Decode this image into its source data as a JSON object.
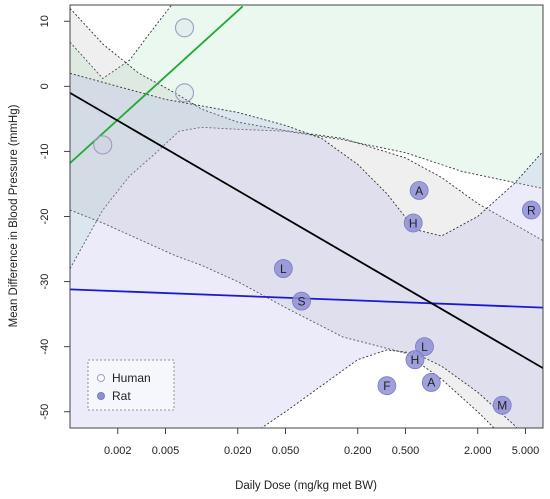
{
  "chart_data": {
    "type": "scatter",
    "xlabel": "Daily Dose (mg/kg met BW)",
    "ylabel": "Mean Difference in Blood Pressure (mmHg)",
    "xscale": "log",
    "xlim": [
      0.0008,
      7.0
    ],
    "ylim": [
      -52.5,
      12.5
    ],
    "x_ticks": [
      0.002,
      0.005,
      0.02,
      0.05,
      0.2,
      0.5,
      2.0,
      5.0
    ],
    "x_tick_labels": [
      "0.002",
      "0.005",
      "0.020",
      "0.050",
      "0.200",
      "0.500",
      "2.000",
      "5.000"
    ],
    "y_ticks": [
      10,
      0,
      -10,
      -20,
      -30,
      -40,
      -50
    ],
    "y_tick_labels": [
      "10",
      "0",
      "-10",
      "-20",
      "-30",
      "-40",
      "-50"
    ],
    "legend": {
      "position": "bottom-left",
      "entries": [
        {
          "label": "Human",
          "marker": "hollow-circle"
        },
        {
          "label": "Rat",
          "marker": "filled-circle"
        }
      ]
    },
    "colors": {
      "human_line": "#22aa33",
      "human_band": "#bfe8cc",
      "rat_line": "#1a1ad4",
      "rat_band": "#b8b8ec",
      "overall_line": "#000000",
      "overall_band": "#b8b8b8",
      "rat_point": "#8f8fd6",
      "human_point": "#c4c8de"
    },
    "series": [
      {
        "name": "Human",
        "marker": "hollow-circle",
        "points": [
          {
            "x": 0.0015,
            "y": -9,
            "label": ""
          },
          {
            "x": 0.0072,
            "y": 9,
            "label": ""
          },
          {
            "x": 0.0072,
            "y": -1,
            "label": ""
          }
        ]
      },
      {
        "name": "Rat",
        "marker": "filled-circle",
        "points": [
          {
            "x": 0.048,
            "y": -28,
            "label": "L"
          },
          {
            "x": 0.068,
            "y": -33,
            "label": "S"
          },
          {
            "x": 0.65,
            "y": -16,
            "label": "A"
          },
          {
            "x": 0.58,
            "y": -21,
            "label": "H"
          },
          {
            "x": 5.6,
            "y": -19,
            "label": "R"
          },
          {
            "x": 0.72,
            "y": -40,
            "label": "L"
          },
          {
            "x": 0.6,
            "y": -42,
            "label": "H"
          },
          {
            "x": 0.35,
            "y": -46,
            "label": "F"
          },
          {
            "x": 0.82,
            "y": -45.5,
            "label": "A"
          },
          {
            "x": 3.2,
            "y": -49,
            "label": "M"
          }
        ]
      }
    ],
    "fit_lines": [
      {
        "group": "Human",
        "x": [
          0.0008,
          0.022
        ],
        "y": [
          -11.8,
          12.3
        ]
      },
      {
        "group": "Rat",
        "x": [
          0.0008,
          7.0
        ],
        "y": [
          -31.2,
          -34.0
        ]
      },
      {
        "group": "Overall",
        "x": [
          0.0008,
          7.0
        ],
        "y": [
          -1.0,
          -43.3
        ]
      }
    ],
    "confidence_bands": [
      {
        "group": "Human",
        "x": [
          0.0008,
          0.0015,
          0.0025,
          0.004,
          0.0065,
          0.01,
          0.02,
          0.05,
          0.15,
          0.5,
          1.5,
          7.0
        ],
        "upper": [
          6.8,
          1.2,
          4.0,
          9.0,
          14.0,
          20.0,
          24.0,
          24.0,
          24.0,
          24.0,
          24.0,
          24.0
        ],
        "lower": [
          -28.0,
          -19.0,
          -13.8,
          -10.5,
          -6.9,
          -6.3,
          -6.6,
          -6.9,
          -8.2,
          -10.2,
          -13.1,
          -15.7
        ]
      },
      {
        "group": "Overall",
        "x": [
          0.0008,
          0.0015,
          0.003,
          0.006,
          0.01,
          0.02,
          0.05,
          0.15,
          0.5,
          1.0,
          2.0,
          7.0
        ],
        "upper": [
          12.0,
          6.5,
          2.0,
          -1.0,
          -3.5,
          -5.5,
          -6.8,
          -8.0,
          -11.0,
          -14.0,
          -18.0,
          -23.7
        ],
        "lower": [
          -19.0,
          -21.0,
          -23.5,
          -26.0,
          -27.5,
          -30.0,
          -34.0,
          -38.5,
          -41.0,
          -45.0,
          -50.0,
          -60.0
        ]
      },
      {
        "group": "Rat",
        "x": [
          0.0008,
          0.005,
          0.02,
          0.05,
          0.1,
          0.2,
          0.35,
          0.6,
          1.0,
          2.0,
          4.0,
          7.0
        ],
        "upper": [
          2.0,
          -2.0,
          -4.0,
          -6.0,
          -8.0,
          -12.0,
          -16.5,
          -22.0,
          -23.0,
          -20.0,
          -15.0,
          -10.0
        ],
        "lower": [
          -65.0,
          -60.0,
          -55.0,
          -50.0,
          -46.0,
          -42.0,
          -40.5,
          -41.0,
          -43.0,
          -47.0,
          -52.0,
          -57.0
        ]
      }
    ]
  }
}
